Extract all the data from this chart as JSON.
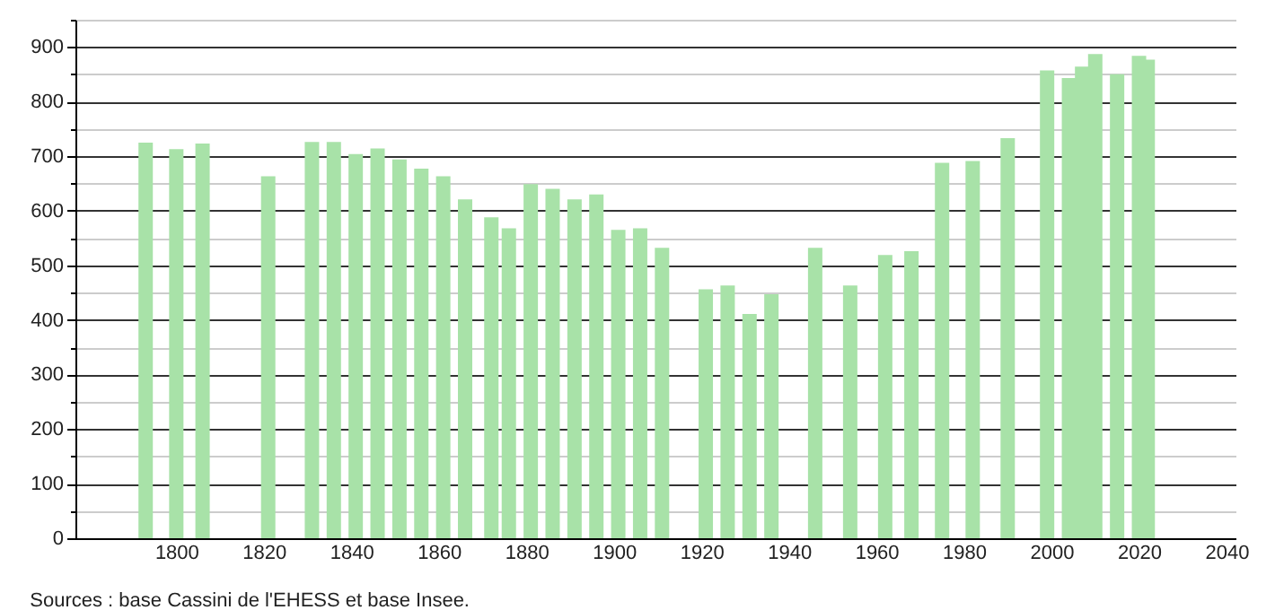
{
  "chart_data": {
    "type": "bar",
    "x": [
      1793,
      1800,
      1806,
      1821,
      1831,
      1836,
      1841,
      1846,
      1851,
      1856,
      1861,
      1866,
      1872,
      1876,
      1881,
      1886,
      1891,
      1896,
      1901,
      1906,
      1911,
      1921,
      1926,
      1931,
      1936,
      1946,
      1954,
      1962,
      1968,
      1975,
      1982,
      1990,
      1999,
      2004,
      2007,
      2010,
      2015,
      2020,
      2022
    ],
    "values": [
      725,
      713,
      723,
      663,
      726,
      726,
      704,
      714,
      694,
      677,
      663,
      621,
      588,
      568,
      649,
      640,
      621,
      630,
      565,
      568,
      532,
      456,
      463,
      411,
      447,
      532,
      463,
      519,
      526,
      688,
      691,
      733,
      857,
      843,
      864,
      887,
      850,
      884,
      877
    ],
    "color": "#a8e2a8",
    "xlim": [
      1779,
      2040
    ],
    "xticks": [
      1800,
      1820,
      1840,
      1860,
      1880,
      1900,
      1920,
      1940,
      1960,
      1980,
      2000,
      2020,
      2040
    ],
    "ylim": [
      0,
      950
    ],
    "yticks": [
      0,
      {
        "value": 50,
        "label": null
      },
      100,
      {
        "value": 150,
        "label": null
      },
      200,
      {
        "value": 250,
        "label": null
      },
      300,
      {
        "value": 350,
        "label": null
      },
      400,
      {
        "value": 450,
        "label": null
      },
      500,
      {
        "value": 550,
        "label": null
      },
      600,
      {
        "value": 650,
        "label": null
      },
      700,
      {
        "value": 750,
        "label": null
      },
      800,
      {
        "value": 850,
        "label": null
      },
      900,
      {
        "value": 950,
        "label": null
      }
    ],
    "grid": "y",
    "annotations": [
      "Sources : base Cassini de l'EHESS et base Insee."
    ]
  }
}
